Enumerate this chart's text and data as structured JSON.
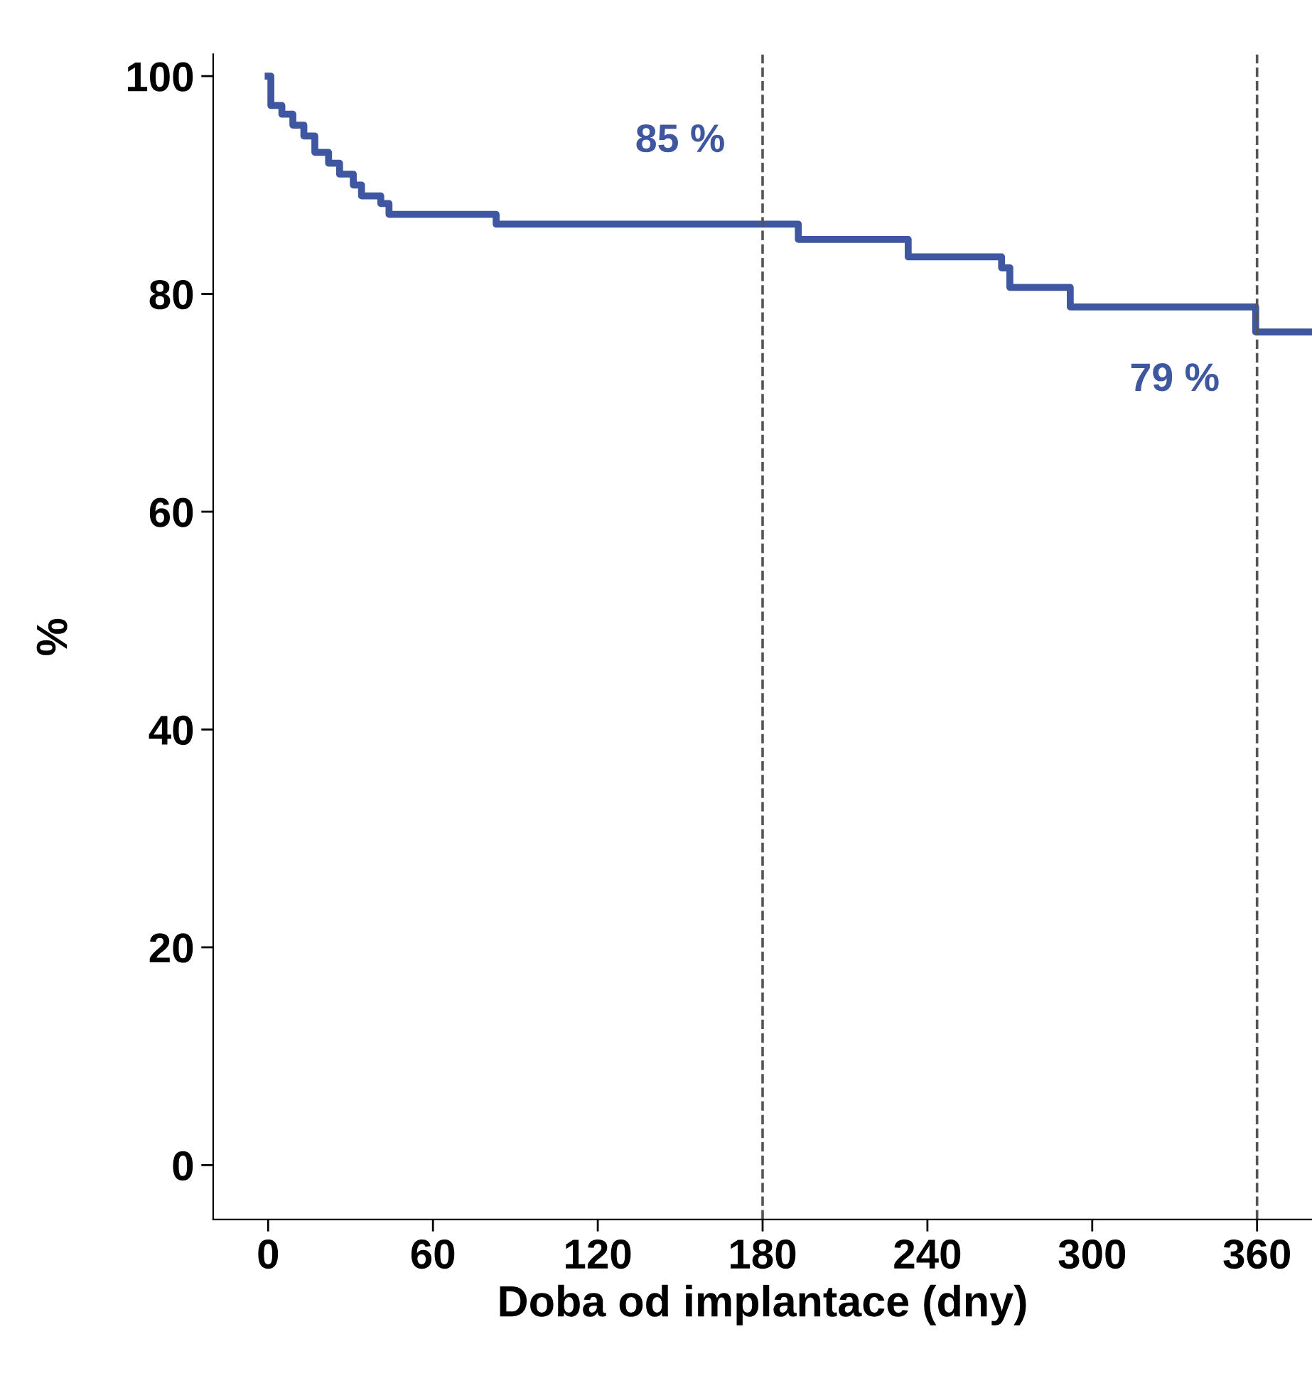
{
  "chart_data": {
    "type": "step",
    "xlabel": "Doba od implantace (dny)",
    "ylabel": "%",
    "x": [
      0,
      1,
      5,
      9,
      13,
      17,
      22,
      26,
      31,
      34,
      41,
      44,
      83,
      193,
      233,
      267,
      270,
      292,
      359.5,
      380
    ],
    "series": [
      {
        "color": "#3f56a0",
        "values": [
          100,
          97.3,
          96.5,
          95.5,
          94.5,
          93.0,
          92.0,
          91.0,
          90.0,
          89.0,
          88.3,
          87.3,
          86.4,
          85.0,
          83.4,
          82.4,
          80.6,
          78.8,
          76.5,
          76.5
        ]
      }
    ],
    "xlim": [
      -20,
      380
    ],
    "ylim": [
      -5,
      102
    ],
    "xticks": [
      0,
      60,
      120,
      180,
      240,
      300,
      360
    ],
    "yticks": [
      0,
      20,
      40,
      60,
      80,
      100
    ],
    "ref_lines": [
      {
        "axis": "x",
        "value": 180,
        "color": "#555555",
        "line_style": "dashed"
      },
      {
        "axis": "x",
        "value": 360,
        "color": "#555555",
        "line_style": "dashed"
      }
    ],
    "annotations": [
      "85 %",
      "79 %"
    ],
    "grid": false,
    "legend": false
  }
}
